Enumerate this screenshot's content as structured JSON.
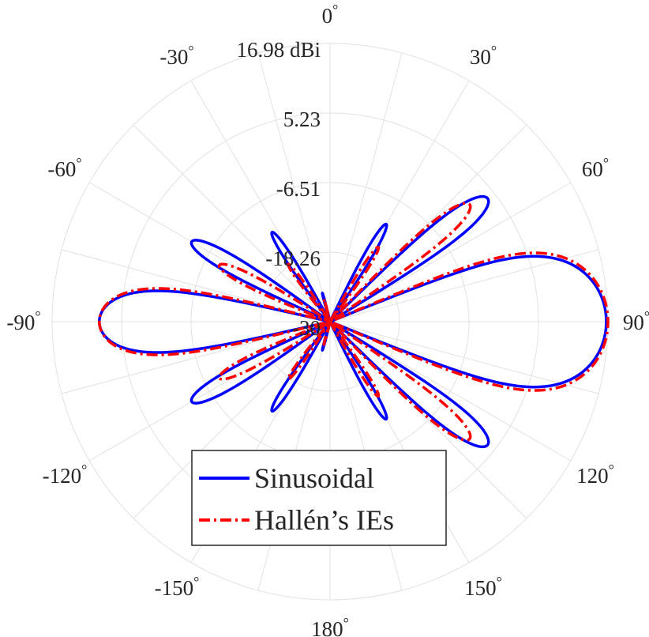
{
  "chart_data": {
    "type": "polar",
    "radial_unit": "dBi",
    "rlim": [
      -30,
      16.98
    ],
    "radial_ticks": [
      -30,
      -18.26,
      -6.51,
      5.23,
      16.98
    ],
    "radial_tick_labels": [
      "-30",
      "-18.26",
      "-6.51",
      "5.23",
      "16.98 dBi"
    ],
    "theta_zero": "top",
    "theta_direction": "clockwise",
    "angle_ticks": [
      0,
      30,
      60,
      90,
      120,
      150,
      180,
      -150,
      -120,
      -90,
      -60,
      -30
    ],
    "angle_tick_labels": [
      "0",
      "30",
      "60",
      "90",
      "120",
      "150",
      "180",
      "-150",
      "-120",
      "-90",
      "-60",
      "-30"
    ],
    "degree_symbol": "°",
    "grid": true,
    "grid_step_deg": 15,
    "legend": {
      "location": "bottom",
      "colors": {
        "Sinusoidal": "#0000ff",
        "Hallén’s IEs": "#ff0000"
      }
    },
    "series": [
      {
        "name": "Sinusoidal",
        "color": "#0000ff",
        "line_style": "solid",
        "lobes": [
          {
            "peak_deg": 90,
            "peak_dbi": 16.7,
            "half_width_deg": 22
          },
          {
            "peak_deg": -90,
            "peak_dbi": 9.0,
            "half_width_deg": 13
          },
          {
            "peak_deg": 52,
            "peak_dbi": 3.8,
            "half_width_deg": 6.5
          },
          {
            "peak_deg": 128,
            "peak_dbi": 3.8,
            "half_width_deg": 6.5
          },
          {
            "peak_deg": 30,
            "peak_dbi": -11.0,
            "half_width_deg": 4.5
          },
          {
            "peak_deg": 150,
            "peak_dbi": -11.0,
            "half_width_deg": 4.5
          },
          {
            "peak_deg": -60,
            "peak_dbi": -3.0,
            "half_width_deg": 6
          },
          {
            "peak_deg": -120,
            "peak_dbi": -3.0,
            "half_width_deg": 6
          },
          {
            "peak_deg": -33,
            "peak_dbi": -12.0,
            "half_width_deg": 4.5
          },
          {
            "peak_deg": -147,
            "peak_dbi": -12.0,
            "half_width_deg": 4.5
          },
          {
            "peak_deg": -15,
            "peak_dbi": -25.0,
            "half_width_deg": 3
          },
          {
            "peak_deg": -165,
            "peak_dbi": -25.0,
            "half_width_deg": 3
          }
        ]
      },
      {
        "name": "Hallén’s IEs",
        "color": "#ff0000",
        "line_style": "dashdot",
        "lobes": [
          {
            "peak_deg": 90,
            "peak_dbi": 16.98,
            "half_width_deg": 23
          },
          {
            "peak_deg": -90,
            "peak_dbi": 9.0,
            "half_width_deg": 14
          },
          {
            "peak_deg": 50,
            "peak_dbi": 0.8,
            "half_width_deg": 6
          },
          {
            "peak_deg": 130,
            "peak_dbi": 0.8,
            "half_width_deg": 6
          },
          {
            "peak_deg": 33,
            "peak_dbi": -15.0,
            "half_width_deg": 4.5
          },
          {
            "peak_deg": 147,
            "peak_dbi": -15.0,
            "half_width_deg": 4.5
          },
          {
            "peak_deg": -63,
            "peak_dbi": -9.0,
            "half_width_deg": 6
          },
          {
            "peak_deg": -117,
            "peak_dbi": -9.0,
            "half_width_deg": 6
          },
          {
            "peak_deg": -36,
            "peak_dbi": -18.0,
            "half_width_deg": 4.5
          },
          {
            "peak_deg": -144,
            "peak_dbi": -18.0,
            "half_width_deg": 4.5
          },
          {
            "peak_deg": -15,
            "peak_dbi": -26.0,
            "half_width_deg": 3
          },
          {
            "peak_deg": -165,
            "peak_dbi": -26.0,
            "half_width_deg": 3
          }
        ]
      }
    ]
  }
}
